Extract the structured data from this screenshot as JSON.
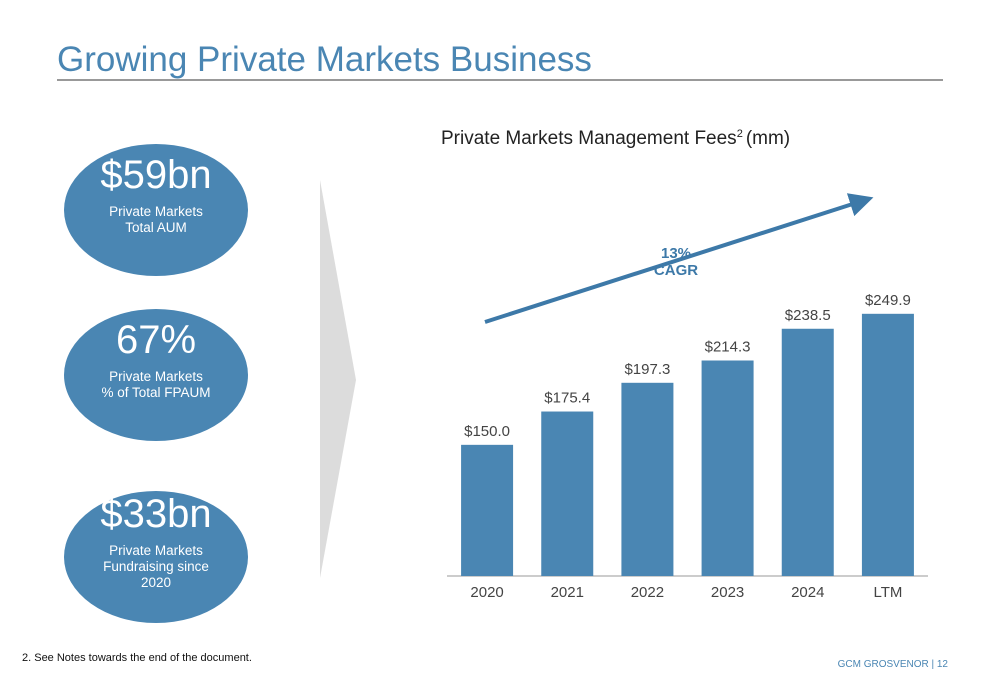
{
  "header": {
    "title": "Growing Private Markets Business"
  },
  "stats": [
    {
      "value": "$59bn",
      "lines": [
        "Private Markets",
        "Total AUM"
      ]
    },
    {
      "value": "67%",
      "lines": [
        "Private Markets",
        "% of Total FPAUM"
      ]
    },
    {
      "value": "$33bn",
      "lines": [
        "Private Markets",
        "Fundraising since",
        "2020"
      ]
    }
  ],
  "chart_data": {
    "type": "bar",
    "title": "Private Markets Management Fees",
    "title_superscript": "2",
    "title_suffix": "(mm)",
    "annotation": [
      "13%",
      "CAGR"
    ],
    "categories": [
      "2020",
      "2021",
      "2022",
      "2023",
      "2024",
      "LTM"
    ],
    "values": [
      150.0,
      175.4,
      197.3,
      214.3,
      238.5,
      249.9
    ],
    "value_labels": [
      "$150.0",
      "$175.4",
      "$197.3",
      "$214.3",
      "$238.5",
      "$249.9"
    ],
    "color": "#4a86b3",
    "ylim": [
      50,
      265
    ]
  },
  "footnote": "2. See Notes towards the end of the document.",
  "footer": "GCM GROSVENOR | 12"
}
